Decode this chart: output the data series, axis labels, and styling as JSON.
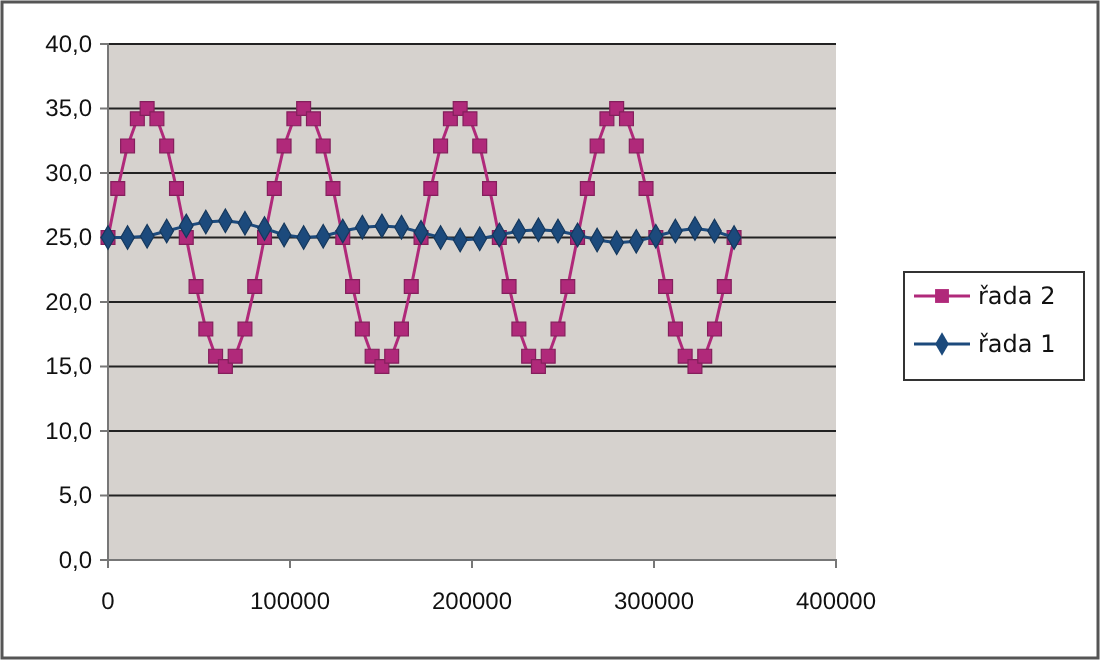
{
  "chart_data": {
    "type": "line",
    "xlim": [
      0,
      400000
    ],
    "xticks": [
      0,
      100000,
      200000,
      300000,
      400000
    ],
    "ylim": [
      0,
      40
    ],
    "yticks": [
      {
        "value": 0,
        "label": "0,0"
      },
      {
        "value": 5,
        "label": "5,0"
      },
      {
        "value": 10,
        "label": "10,0"
      },
      {
        "value": 15,
        "label": "15,0"
      },
      {
        "value": 20,
        "label": "20,0"
      },
      {
        "value": 25,
        "label": "25,0"
      },
      {
        "value": 30,
        "label": "30,0"
      },
      {
        "value": 35,
        "label": "35,0"
      },
      {
        "value": 40,
        "label": "40,0"
      }
    ],
    "grid": "y",
    "legend": "right",
    "series": [
      {
        "name": "řada 2",
        "color": "#b0297a",
        "marker": "square",
        "x": [
          0,
          5375,
          10750,
          16125,
          21500,
          26875,
          32250,
          37625,
          43000,
          48375,
          53750,
          59125,
          64500,
          69875,
          75250,
          80625,
          86000,
          91375,
          96750,
          102125,
          107500,
          112875,
          118250,
          123625,
          129000,
          134375,
          139750,
          145125,
          150500,
          155875,
          161250,
          166625,
          172000,
          177375,
          182750,
          188125,
          193500,
          198875,
          204250,
          209625,
          215000,
          220375,
          225750,
          231125,
          236500,
          241875,
          247250,
          252625,
          258000,
          263375,
          268750,
          274125,
          279500,
          284875,
          290250,
          295625,
          301000,
          306375,
          311750,
          317125,
          322500,
          327875,
          333250,
          338625,
          344000
        ],
        "values": [
          25,
          28.8,
          32.1,
          34.2,
          35,
          34.2,
          32.1,
          28.8,
          25,
          21.2,
          17.9,
          15.8,
          15,
          15.8,
          17.9,
          21.2,
          25,
          28.8,
          32.1,
          34.2,
          35,
          34.2,
          32.1,
          28.8,
          25,
          21.2,
          17.9,
          15.8,
          15,
          15.8,
          17.9,
          21.2,
          25,
          28.8,
          32.1,
          34.2,
          35,
          34.2,
          32.1,
          28.8,
          25,
          21.2,
          17.9,
          15.8,
          15,
          15.8,
          17.9,
          21.2,
          25,
          28.8,
          32.1,
          34.2,
          35,
          34.2,
          32.1,
          28.8,
          25,
          21.2,
          17.9,
          15.8,
          15,
          15.8,
          17.9,
          21.2,
          25
        ]
      },
      {
        "name": "řada 1",
        "color": "#1c4a7c",
        "marker": "diamond",
        "x": [
          0,
          10750,
          21500,
          32250,
          43000,
          53750,
          64500,
          75250,
          86000,
          96750,
          107500,
          118250,
          129000,
          139750,
          150500,
          161250,
          172000,
          182750,
          193500,
          204250,
          215000,
          225750,
          236500,
          247250,
          258000,
          268750,
          279500,
          290250,
          301000,
          311750,
          322500,
          333250,
          344000
        ],
        "values": [
          25.0,
          25.0,
          25.1,
          25.5,
          25.9,
          26.2,
          26.3,
          26.1,
          25.7,
          25.2,
          25.0,
          25.1,
          25.5,
          25.8,
          25.9,
          25.8,
          25.4,
          25.0,
          24.8,
          24.9,
          25.2,
          25.5,
          25.6,
          25.5,
          25.2,
          24.8,
          24.6,
          24.7,
          25.1,
          25.5,
          25.7,
          25.5,
          25.0
        ]
      }
    ]
  }
}
